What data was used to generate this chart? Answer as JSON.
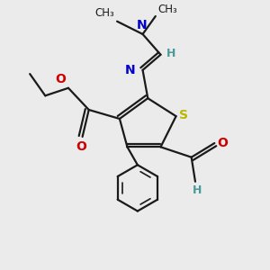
{
  "background_color": "#ebebeb",
  "bond_color": "#1a1a1a",
  "S_color": "#b8b800",
  "N_color": "#0000cc",
  "O_color": "#cc0000",
  "H_color": "#4a9a9a",
  "figsize": [
    3.0,
    3.0
  ],
  "dpi": 100,
  "xlim": [
    0,
    10
  ],
  "ylim": [
    0,
    10
  ]
}
